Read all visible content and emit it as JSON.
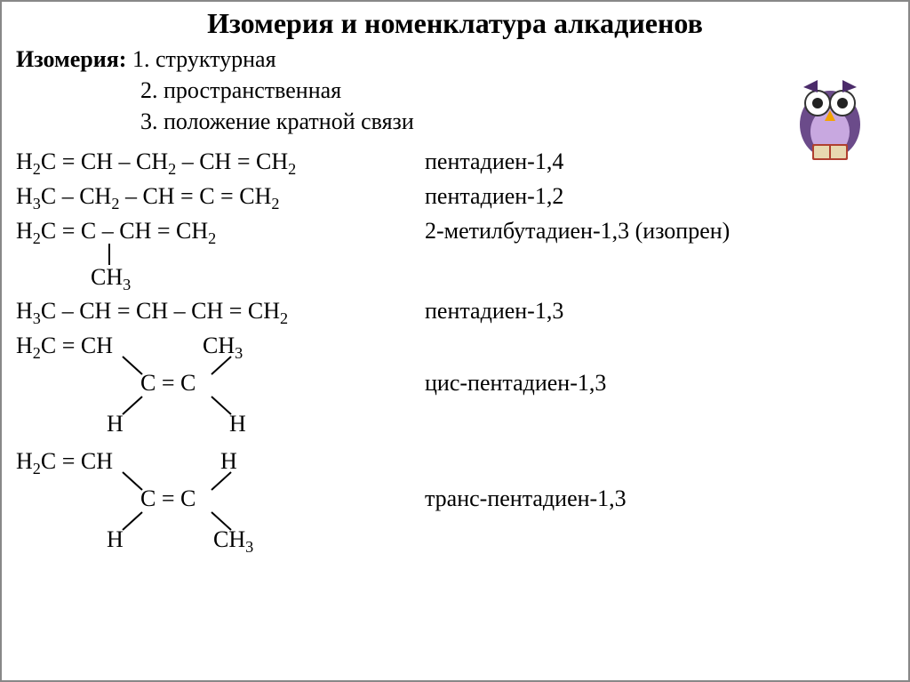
{
  "title": "Изомерия и номенклатура алкадиенов",
  "isomerism": {
    "label": "Изомерия:",
    "items": [
      "1. структурная",
      "2. пространственная",
      "3. положение кратной связи"
    ]
  },
  "compounds": [
    {
      "formula": "H₂C = CH – CH₂ – CH = CH₂",
      "name": "пентадиен-1,4"
    },
    {
      "formula": "H₃C – CH₂ – CH = C = CH₂",
      "name": "пентадиен-1,2"
    },
    {
      "formula_main": "H₂C = C – CH = CH₂",
      "branch": "CH₃",
      "name": "2-метилбутадиен-1,3 (изопрен)"
    },
    {
      "formula": "H₃C – CH = CH – CH = CH₂",
      "name": "пентадиен-1,3"
    },
    {
      "top_left": "H₂C = CH",
      "top_right": "CH₃",
      "mid": "C = C",
      "bot_left": "H",
      "bot_right": "H",
      "name": "цис-пентадиен-1,3"
    },
    {
      "top_left": "H₂C = CH",
      "top_right": "H",
      "mid": "C = C",
      "bot_left": "H",
      "bot_right": "CH₃",
      "name": "транс-пентадиен-1,3"
    }
  ],
  "colors": {
    "text": "#000000",
    "background": "#ffffff",
    "border": "#888888"
  },
  "fontsize": {
    "title": 32,
    "body": 26
  }
}
